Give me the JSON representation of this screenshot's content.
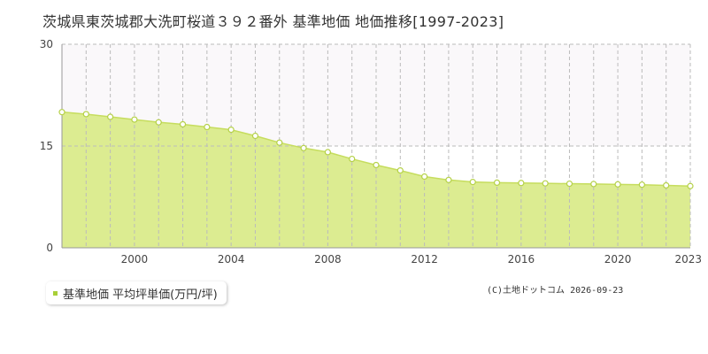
{
  "title": "茨城県東茨城郡大洗町桜道３９２番外 基準地価 地価推移[1997-2023]",
  "legend": {
    "label": "基準地価 平均坪単価(万円/坪)"
  },
  "copyright": "(C)土地ドットコム 2026-09-23",
  "colors": {
    "fill": "#dcec91",
    "line": "#c6dd5e",
    "marker_fill": "#ffffff",
    "marker_stroke": "#b5d148",
    "grid": "#bbbbbb",
    "upper_band": "#faf8fa",
    "legend_swatch": "#a8cf38"
  },
  "chart_data": {
    "type": "area",
    "title": "茨城県東茨城郡大洗町桜道３９２番外 基準地価 地価推移[1997-2023]",
    "xlabel": "",
    "ylabel": "",
    "ylim": [
      0,
      30
    ],
    "xlim": [
      1997,
      2023
    ],
    "yticks": [
      0,
      15,
      30
    ],
    "xticks": [
      2000,
      2004,
      2008,
      2012,
      2016,
      2020,
      2023
    ],
    "grid": true,
    "legend_position": "bottom-left",
    "series": [
      {
        "name": "基準地価 平均坪単価(万円/坪)",
        "x": [
          1997,
          1998,
          1999,
          2000,
          2001,
          2002,
          2003,
          2004,
          2005,
          2006,
          2007,
          2008,
          2009,
          2010,
          2011,
          2012,
          2013,
          2014,
          2015,
          2016,
          2017,
          2018,
          2019,
          2020,
          2021,
          2022,
          2023
        ],
        "values": [
          20.0,
          19.7,
          19.3,
          18.9,
          18.5,
          18.2,
          17.8,
          17.4,
          16.5,
          15.5,
          14.7,
          14.1,
          13.1,
          12.2,
          11.4,
          10.5,
          10.0,
          9.7,
          9.6,
          9.55,
          9.5,
          9.45,
          9.4,
          9.35,
          9.3,
          9.2,
          9.1
        ]
      }
    ]
  }
}
